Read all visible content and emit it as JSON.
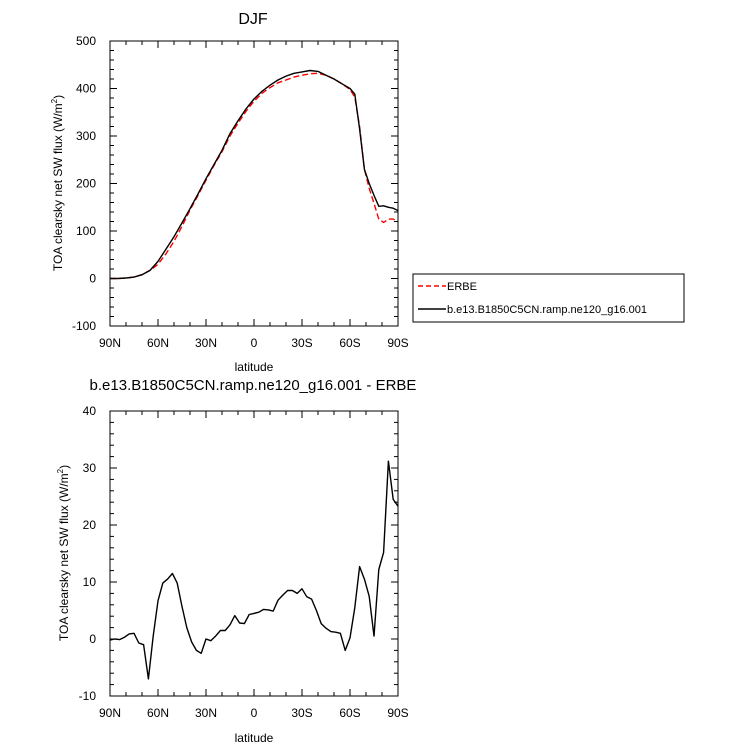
{
  "chart_data": [
    {
      "type": "line",
      "title": "DJF",
      "xlabel": "latitude",
      "ylabel": "TOA clearsky net SW flux (W/m",
      "ylabel_sup": "2",
      "ylabel_close": ")",
      "xlim": [
        90,
        -90
      ],
      "ylim": [
        -100,
        500
      ],
      "xticks": [
        90,
        60,
        30,
        0,
        -30,
        -60,
        -90
      ],
      "xtick_labels": [
        "90N",
        "60N",
        "30N",
        "0",
        "30S",
        "60S",
        "90S"
      ],
      "yticks": [
        -100,
        0,
        100,
        200,
        300,
        400,
        500
      ],
      "ytick_labels": [
        "-100",
        "0",
        "100",
        "200",
        "300",
        "400",
        "500"
      ],
      "grid": false,
      "legend_position": "right",
      "series": [
        {
          "name": "ERBE",
          "color": "#ff0000",
          "style": "dashed",
          "x": [
            90,
            85,
            80,
            75,
            70,
            65,
            60,
            55,
            50,
            45,
            40,
            35,
            30,
            25,
            20,
            15,
            10,
            5,
            0,
            -5,
            -10,
            -15,
            -20,
            -25,
            -30,
            -35,
            -40,
            -45,
            -50,
            -55,
            -60,
            -63,
            -66,
            -69,
            -72,
            -75,
            -78,
            -81,
            -84,
            -87,
            -90
          ],
          "y": [
            0,
            0,
            1,
            3,
            8,
            17,
            30,
            52,
            78,
            110,
            144,
            175,
            207,
            238,
            267,
            300,
            327,
            352,
            373,
            390,
            402,
            412,
            418,
            424,
            428,
            431,
            432,
            428,
            420,
            410,
            398,
            382,
            320,
            230,
            190,
            158,
            125,
            118,
            125,
            125,
            120
          ]
        },
        {
          "name": "b.e13.B1850C5CN.ramp.ne120_g16.001",
          "color": "#000000",
          "style": "solid",
          "x": [
            90,
            85,
            80,
            75,
            70,
            65,
            60,
            55,
            50,
            45,
            40,
            35,
            30,
            25,
            20,
            15,
            10,
            5,
            0,
            -5,
            -10,
            -15,
            -20,
            -25,
            -30,
            -35,
            -40,
            -45,
            -50,
            -55,
            -60,
            -63,
            -66,
            -69,
            -72,
            -75,
            -78,
            -81,
            -84,
            -87,
            -90
          ],
          "y": [
            0,
            0,
            1,
            3,
            8,
            17,
            36,
            62,
            88,
            117,
            147,
            178,
            210,
            240,
            270,
            305,
            332,
            357,
            378,
            394,
            407,
            418,
            426,
            432,
            435,
            438,
            436,
            428,
            420,
            410,
            400,
            388,
            315,
            230,
            200,
            175,
            152,
            153,
            150,
            148,
            143
          ]
        }
      ]
    },
    {
      "type": "line",
      "title": "b.e13.B1850C5CN.ramp.ne120_g16.001 - ERBE",
      "xlabel": "latitude",
      "ylabel": "TOA clearsky net SW flux (W/m",
      "ylabel_sup": "2",
      "ylabel_close": ")",
      "xlim": [
        90,
        -90
      ],
      "ylim": [
        -10,
        40
      ],
      "xticks": [
        90,
        60,
        30,
        0,
        -30,
        -60,
        -90
      ],
      "xtick_labels": [
        "90N",
        "60N",
        "30N",
        "0",
        "30S",
        "60S",
        "90S"
      ],
      "yticks": [
        -10,
        0,
        10,
        20,
        30,
        40
      ],
      "ytick_labels": [
        "-10",
        "0",
        "10",
        "20",
        "30",
        "40"
      ],
      "grid": false,
      "series": [
        {
          "color": "#000000",
          "style": "solid",
          "x": [
            90,
            87,
            84,
            81,
            78,
            75,
            72,
            69,
            66,
            63,
            60,
            57,
            54,
            51,
            48,
            45,
            42,
            39,
            36,
            33,
            30,
            27,
            24,
            21,
            18,
            15,
            12,
            9,
            6,
            3,
            0,
            -3,
            -6,
            -9,
            -12,
            -15,
            -18,
            -21,
            -24,
            -27,
            -30,
            -33,
            -36,
            -39,
            -42,
            -45,
            -48,
            -51,
            -54,
            -57,
            -60,
            -63,
            -66,
            -69,
            -72,
            -75,
            -78,
            -81,
            -84,
            -87,
            -90
          ],
          "y": [
            -0.2,
            0,
            -0.1,
            0.3,
            0.9,
            1.0,
            -0.7,
            -1.0,
            -7.0,
            0.5,
            6.7,
            9.8,
            10.5,
            11.5,
            9.8,
            5.7,
            2.0,
            -0.5,
            -2.0,
            -2.5,
            0,
            -0.3,
            0.5,
            1.5,
            1.5,
            2.5,
            4.1,
            2.8,
            2.7,
            4.3,
            4.5,
            4.7,
            5.2,
            5.1,
            4.9,
            6.8,
            7.7,
            8.5,
            8.5,
            8.0,
            8.8,
            7.4,
            7.0,
            5.0,
            2.7,
            1.9,
            1.3,
            1.2,
            1.0,
            -2.0,
            0.2,
            5.5,
            12.7,
            10.5,
            7.5,
            0.5,
            12.2,
            15.2,
            31.2,
            24.5,
            23.3
          ]
        }
      ]
    }
  ]
}
